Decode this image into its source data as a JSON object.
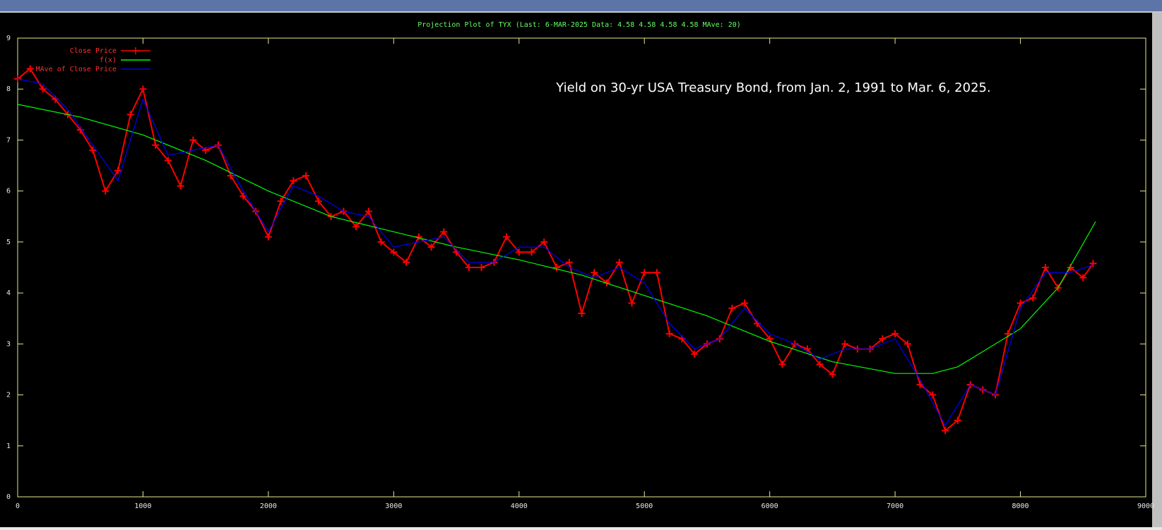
{
  "chart_data": {
    "type": "line",
    "title": "Projection Plot of TYX  (Last:  6-MAR-2025    Data: 4.58 4.58 4.58 4.58    MAve: 20)",
    "annotation": "Yield on 30-yr USA Treasury Bond, from Jan. 2, 1991 to Mar. 6, 2025.",
    "xlim": [
      0,
      9000
    ],
    "xticks": [
      0,
      1000,
      2000,
      3000,
      4000,
      5000,
      6000,
      7000,
      8000,
      9000
    ],
    "ylim": [
      0,
      9
    ],
    "yticks": [
      0,
      1,
      2,
      3,
      4,
      5,
      6,
      7,
      8,
      9
    ],
    "legend": "top-left",
    "series": [
      {
        "name": "Close Price",
        "color": "#ff0000",
        "markers": true,
        "x": [
          0,
          100,
          200,
          300,
          400,
          500,
          600,
          700,
          800,
          900,
          1000,
          1100,
          1200,
          1300,
          1400,
          1500,
          1600,
          1700,
          1800,
          1900,
          2000,
          2100,
          2200,
          2300,
          2400,
          2500,
          2600,
          2700,
          2800,
          2900,
          3000,
          3100,
          3200,
          3300,
          3400,
          3500,
          3600,
          3700,
          3800,
          3900,
          4000,
          4100,
          4200,
          4300,
          4400,
          4500,
          4600,
          4700,
          4800,
          4900,
          5000,
          5100,
          5200,
          5300,
          5400,
          5500,
          5600,
          5700,
          5800,
          5900,
          6000,
          6100,
          6200,
          6300,
          6400,
          6500,
          6600,
          6700,
          6800,
          6900,
          7000,
          7100,
          7200,
          7300,
          7400,
          7500,
          7600,
          7700,
          7800,
          7900,
          8000,
          8100,
          8200,
          8300,
          8400,
          8500,
          8580
        ],
        "values": [
          8.2,
          8.4,
          8.0,
          7.8,
          7.5,
          7.2,
          6.8,
          6.0,
          6.4,
          7.5,
          8.0,
          6.9,
          6.6,
          6.1,
          7.0,
          6.8,
          6.9,
          6.3,
          5.9,
          5.6,
          5.1,
          5.8,
          6.2,
          6.3,
          5.8,
          5.5,
          5.6,
          5.3,
          5.6,
          5.0,
          4.8,
          4.6,
          5.1,
          4.9,
          5.2,
          4.8,
          4.5,
          4.5,
          4.6,
          5.1,
          4.8,
          4.8,
          5.0,
          4.5,
          4.6,
          3.6,
          4.4,
          4.2,
          4.6,
          3.8,
          4.4,
          4.4,
          3.2,
          3.1,
          2.8,
          3.0,
          3.1,
          3.7,
          3.8,
          3.4,
          3.1,
          2.6,
          3.0,
          2.9,
          2.6,
          2.4,
          3.0,
          2.9,
          2.9,
          3.1,
          3.2,
          3.0,
          2.2,
          2.0,
          1.3,
          1.5,
          2.2,
          2.1,
          2.0,
          3.2,
          3.8,
          3.9,
          4.5,
          4.1,
          4.5,
          4.3,
          4.58
        ]
      },
      {
        "name": "f(x)",
        "color": "#00ff00",
        "markers": false,
        "x": [
          0,
          500,
          1000,
          1500,
          2000,
          2500,
          3000,
          3500,
          4000,
          4500,
          5000,
          5500,
          6000,
          6500,
          7000,
          7300,
          7500,
          8000,
          8300,
          8600
        ],
        "values": [
          7.7,
          7.45,
          7.1,
          6.6,
          6.0,
          5.5,
          5.2,
          4.9,
          4.65,
          4.35,
          3.95,
          3.55,
          3.05,
          2.65,
          2.42,
          2.42,
          2.55,
          3.3,
          4.1,
          5.4
        ]
      },
      {
        "name": "MAve of Close Price",
        "color": "#0000ff",
        "markers": false,
        "x": [
          0,
          200,
          400,
          600,
          800,
          1000,
          1200,
          1400,
          1600,
          1800,
          2000,
          2200,
          2400,
          2600,
          2800,
          3000,
          3200,
          3400,
          3600,
          3800,
          4000,
          4200,
          4400,
          4600,
          4800,
          5000,
          5200,
          5400,
          5600,
          5800,
          6000,
          6200,
          6400,
          6600,
          6800,
          7000,
          7200,
          7400,
          7600,
          7800,
          8000,
          8200,
          8400,
          8580
        ],
        "values": [
          8.2,
          8.1,
          7.6,
          6.9,
          6.2,
          7.8,
          6.7,
          6.8,
          6.9,
          6.0,
          5.2,
          6.1,
          5.9,
          5.6,
          5.5,
          4.9,
          5.0,
          5.1,
          4.6,
          4.6,
          4.9,
          4.9,
          4.5,
          4.3,
          4.5,
          4.2,
          3.4,
          2.9,
          3.1,
          3.7,
          3.2,
          3.0,
          2.7,
          2.9,
          2.9,
          3.1,
          2.3,
          1.4,
          2.2,
          2.0,
          3.7,
          4.4,
          4.4,
          4.55
        ]
      }
    ]
  }
}
